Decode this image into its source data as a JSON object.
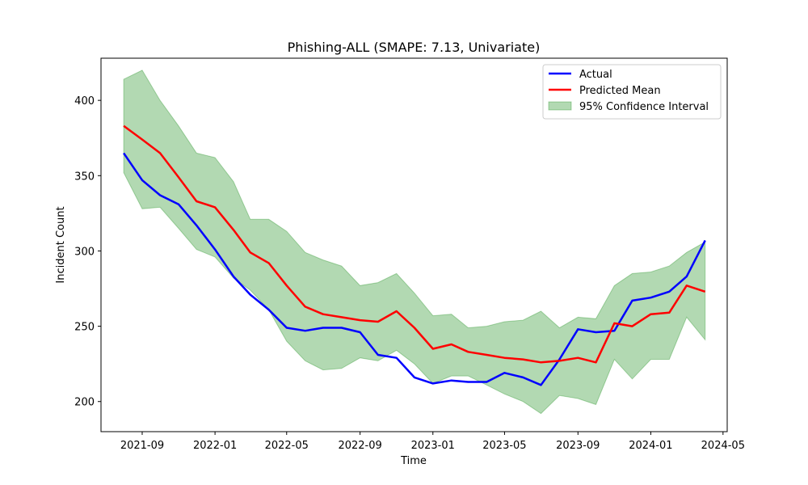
{
  "chart_data": {
    "type": "line",
    "title": "Phishing-ALL (SMAPE: 7.13, Univariate)",
    "xlabel": "Time",
    "ylabel": "Incident Count",
    "x_ticks": [
      "2021-09",
      "2022-01",
      "2022-05",
      "2022-09",
      "2023-01",
      "2023-05",
      "2023-09",
      "2024-01",
      "2024-05"
    ],
    "y_ticks": [
      200,
      250,
      300,
      350,
      400
    ],
    "xlim": [
      "2021-06-24",
      "2024-05-08"
    ],
    "ylim": [
      180,
      428
    ],
    "grid": false,
    "legend_position": "top-right",
    "x": [
      "2021-08",
      "2021-09",
      "2021-10",
      "2021-11",
      "2021-12",
      "2022-01",
      "2022-02",
      "2022-03",
      "2022-04",
      "2022-05",
      "2022-06",
      "2022-07",
      "2022-08",
      "2022-09",
      "2022-10",
      "2022-11",
      "2022-12",
      "2023-01",
      "2023-02",
      "2023-03",
      "2023-04",
      "2023-05",
      "2023-06",
      "2023-07",
      "2023-08",
      "2023-09",
      "2023-10",
      "2023-11",
      "2023-12",
      "2024-01",
      "2024-02",
      "2024-03",
      "2024-04"
    ],
    "series": [
      {
        "name": "Actual",
        "color": "#0000ff",
        "values": [
          365,
          347,
          337,
          331,
          317,
          301,
          283,
          271,
          261,
          249,
          247,
          249,
          249,
          246,
          231,
          229,
          216,
          212,
          214,
          213,
          213,
          219,
          216,
          211,
          228,
          248,
          246,
          247,
          267,
          269,
          273,
          283,
          307
        ]
      },
      {
        "name": "Predicted Mean",
        "color": "#ff0000",
        "values": [
          383,
          374,
          365,
          349,
          333,
          329,
          314,
          299,
          292,
          277,
          263,
          258,
          256,
          254,
          253,
          260,
          249,
          235,
          238,
          233,
          231,
          229,
          228,
          226,
          227,
          229,
          226,
          252,
          250,
          258,
          259,
          277,
          273
        ]
      }
    ],
    "band": {
      "name": "95% Confidence Interval",
      "color": "#008000",
      "upper": [
        414,
        420,
        400,
        383,
        365,
        362,
        346,
        321,
        321,
        313,
        299,
        294,
        290,
        277,
        279,
        285,
        272,
        257,
        258,
        249,
        250,
        253,
        254,
        260,
        249,
        256,
        255,
        277,
        285,
        286,
        290,
        299,
        306
      ],
      "lower": [
        352,
        328,
        329,
        315,
        301,
        296,
        282,
        274,
        261,
        240,
        227,
        221,
        222,
        229,
        227,
        234,
        225,
        212,
        217,
        217,
        211,
        205,
        200,
        192,
        204,
        202,
        198,
        228,
        215,
        228,
        228,
        256,
        241
      ]
    }
  }
}
